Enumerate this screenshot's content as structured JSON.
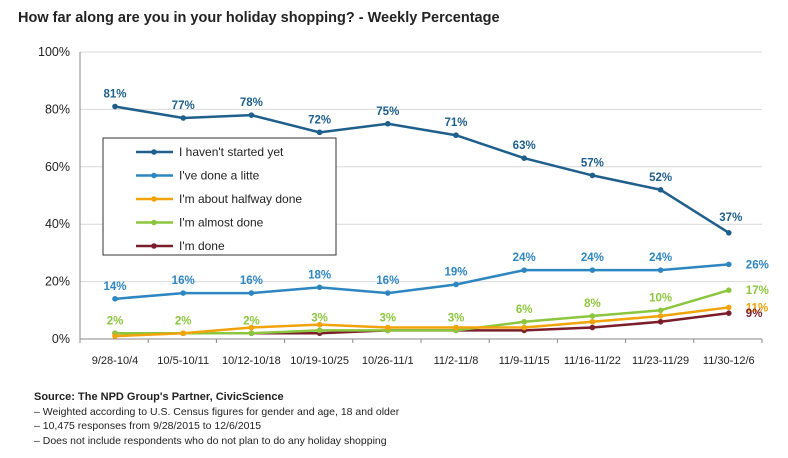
{
  "title": "How far along are you in your holiday shopping? - Weekly Percentage",
  "footer": {
    "source": "Source: The NPD Group's Partner, CivicScience",
    "notes": [
      "– Weighted according to U.S. Census figures for gender and age, 18 and older",
      "– 10,475 responses from 9/28/2015 to 12/6/2015",
      "– Does not include respondents who do not plan to do any holiday shopping"
    ]
  },
  "chart_data": {
    "type": "line",
    "categories": [
      "9/28-10/4",
      "10/5-10/11",
      "10/12-10/18",
      "10/19-10/25",
      "10/26-11/1",
      "11/2-11/8",
      "11/9-11/15",
      "11/16-11/22",
      "11/23-11/29",
      "11/30-12/6"
    ],
    "yticks": [
      "0%",
      "20%",
      "40%",
      "60%",
      "80%",
      "100%"
    ],
    "ylim": [
      0,
      100
    ],
    "grid": "horizontal",
    "legend_position": "left-middle",
    "series": [
      {
        "name": "I haven't started yet",
        "color": "#1f5f8b",
        "values": [
          81,
          77,
          78,
          72,
          75,
          71,
          63,
          57,
          52,
          37
        ],
        "labels": [
          "81%",
          "77%",
          "78%",
          "72%",
          "75%",
          "71%",
          "63%",
          "57%",
          "52%",
          "37%"
        ]
      },
      {
        "name": "I've done a litte",
        "color": "#2e86c1",
        "values": [
          14,
          16,
          16,
          18,
          16,
          19,
          24,
          24,
          24,
          26
        ],
        "labels": [
          "14%",
          "16%",
          "16%",
          "18%",
          "16%",
          "19%",
          "24%",
          "24%",
          "24%",
          "26%"
        ]
      },
      {
        "name": "I'm about halfway done",
        "color": "#f0a30a",
        "values": [
          1,
          2,
          4,
          5,
          4,
          4,
          4,
          6,
          8,
          11
        ],
        "labels": [
          "",
          "",
          "",
          "",
          "",
          "",
          "",
          "",
          "",
          "11%"
        ]
      },
      {
        "name": "I'm almost done",
        "color": "#8cc63f",
        "values": [
          2,
          2,
          2,
          3,
          3,
          3,
          6,
          8,
          10,
          17
        ],
        "labels": [
          "2%",
          "2%",
          "2%",
          "3%",
          "3%",
          "3%",
          "6%",
          "8%",
          "10%",
          "17%"
        ]
      },
      {
        "name": "I'm done",
        "color": "#7b1e2b",
        "values": [
          2,
          2,
          2,
          2,
          3,
          3,
          3,
          4,
          6,
          9
        ],
        "labels": [
          "",
          "",
          "",
          "",
          "",
          "",
          "",
          "",
          "",
          "9%"
        ]
      }
    ]
  }
}
